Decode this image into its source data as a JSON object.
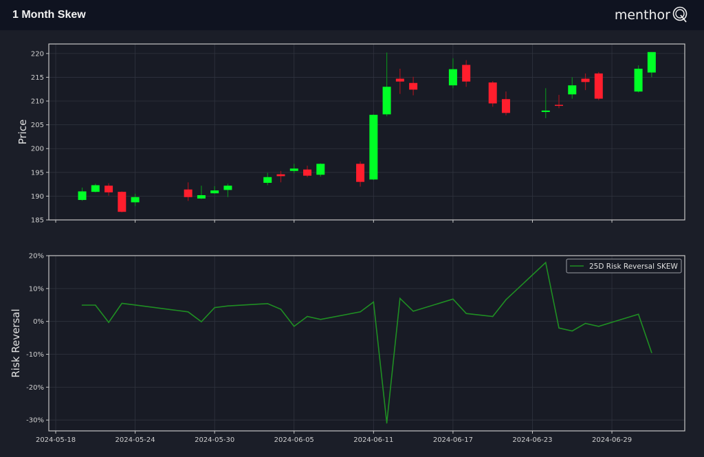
{
  "header": {
    "title": "1 Month Skew",
    "logo_text": "menthor",
    "logo_mark": "Q"
  },
  "colors": {
    "up": "#00ff26",
    "down": "#ff1e2d",
    "line": "#1f8f23",
    "grid": "#30343f",
    "spine": "#c8c8c8"
  },
  "chart_data": [
    {
      "type": "candlestick",
      "title": "",
      "xlabel": "",
      "ylabel": "Price",
      "ylim": [
        185,
        222
      ],
      "yticks": [
        185,
        190,
        195,
        200,
        205,
        210,
        215,
        220
      ],
      "xticks": [
        "2024-05-18",
        "2024-05-24",
        "2024-05-30",
        "2024-06-05",
        "2024-06-11",
        "2024-06-17",
        "2024-06-23",
        "2024-06-29"
      ],
      "grid": true,
      "candles": [
        {
          "date": "2024-05-20",
          "open": 189.2,
          "high": 191.8,
          "low": 189.0,
          "close": 191.0
        },
        {
          "date": "2024-05-21",
          "open": 190.9,
          "high": 192.6,
          "low": 190.8,
          "close": 192.3
        },
        {
          "date": "2024-05-22",
          "open": 192.2,
          "high": 192.7,
          "low": 190.1,
          "close": 190.8
        },
        {
          "date": "2024-05-23",
          "open": 190.9,
          "high": 191.0,
          "low": 186.6,
          "close": 186.7
        },
        {
          "date": "2024-05-24",
          "open": 188.7,
          "high": 190.5,
          "low": 187.9,
          "close": 189.8
        },
        {
          "date": "2024-05-28",
          "open": 191.4,
          "high": 192.9,
          "low": 189.0,
          "close": 189.8
        },
        {
          "date": "2024-05-29",
          "open": 189.5,
          "high": 192.2,
          "low": 189.4,
          "close": 190.2
        },
        {
          "date": "2024-05-30",
          "open": 190.6,
          "high": 192.1,
          "low": 190.5,
          "close": 191.2
        },
        {
          "date": "2024-05-31",
          "open": 191.3,
          "high": 192.6,
          "low": 189.8,
          "close": 192.2
        },
        {
          "date": "2024-06-03",
          "open": 192.8,
          "high": 194.9,
          "low": 192.3,
          "close": 194.0
        },
        {
          "date": "2024-06-04",
          "open": 194.6,
          "high": 195.3,
          "low": 192.9,
          "close": 194.2
        },
        {
          "date": "2024-06-05",
          "open": 195.3,
          "high": 196.8,
          "low": 194.8,
          "close": 195.8
        },
        {
          "date": "2024-06-06",
          "open": 195.6,
          "high": 196.4,
          "low": 194.0,
          "close": 194.3
        },
        {
          "date": "2024-06-07",
          "open": 194.5,
          "high": 196.9,
          "low": 194.1,
          "close": 196.8
        },
        {
          "date": "2024-06-10",
          "open": 196.8,
          "high": 197.3,
          "low": 192.0,
          "close": 193.0
        },
        {
          "date": "2024-06-11",
          "open": 193.5,
          "high": 207.2,
          "low": 193.4,
          "close": 207.1
        },
        {
          "date": "2024-06-12",
          "open": 207.2,
          "high": 220.2,
          "low": 206.8,
          "close": 213.0
        },
        {
          "date": "2024-06-13",
          "open": 214.7,
          "high": 216.8,
          "low": 211.5,
          "close": 214.1
        },
        {
          "date": "2024-06-14",
          "open": 213.8,
          "high": 215.1,
          "low": 211.2,
          "close": 212.4
        },
        {
          "date": "2024-06-17",
          "open": 213.3,
          "high": 219.0,
          "low": 212.7,
          "close": 216.7
        },
        {
          "date": "2024-06-18",
          "open": 217.6,
          "high": 218.6,
          "low": 213.0,
          "close": 214.1
        },
        {
          "date": "2024-06-20",
          "open": 213.9,
          "high": 214.2,
          "low": 208.8,
          "close": 209.5
        },
        {
          "date": "2024-06-21",
          "open": 210.4,
          "high": 212.0,
          "low": 207.0,
          "close": 207.5
        },
        {
          "date": "2024-06-24",
          "open": 207.7,
          "high": 212.7,
          "low": 206.4,
          "close": 208.0
        },
        {
          "date": "2024-06-25",
          "open": 209.2,
          "high": 211.3,
          "low": 208.5,
          "close": 209.0
        },
        {
          "date": "2024-06-26",
          "open": 211.4,
          "high": 215.0,
          "low": 210.5,
          "close": 213.3
        },
        {
          "date": "2024-06-27",
          "open": 214.7,
          "high": 215.8,
          "low": 212.3,
          "close": 214.0
        },
        {
          "date": "2024-06-28",
          "open": 215.8,
          "high": 216.1,
          "low": 210.2,
          "close": 210.5
        },
        {
          "date": "2024-07-01",
          "open": 212.0,
          "high": 217.5,
          "low": 211.8,
          "close": 216.8
        },
        {
          "date": "2024-07-02",
          "open": 216.0,
          "high": 220.3,
          "low": 215.0,
          "close": 220.3
        }
      ]
    },
    {
      "type": "line",
      "title": "",
      "xlabel": "",
      "ylabel": "Risk Reversal",
      "ylim": [
        -33.3,
        20
      ],
      "yticks": [
        20,
        10,
        0,
        -10,
        -20,
        -30
      ],
      "ytick_labels": [
        "20%",
        "10%",
        "0%",
        "-10%",
        "-20%",
        "-30%"
      ],
      "xticks": [
        "2024-05-18",
        "2024-05-24",
        "2024-05-30",
        "2024-06-05",
        "2024-06-11",
        "2024-06-17",
        "2024-06-23",
        "2024-06-29"
      ],
      "grid": true,
      "legend_position": "top-right",
      "series": [
        {
          "name": "25D Risk Reversal SKEW",
          "x": [
            "2024-05-20",
            "2024-05-21",
            "2024-05-22",
            "2024-05-23",
            "2024-05-24",
            "2024-05-28",
            "2024-05-29",
            "2024-05-30",
            "2024-05-31",
            "2024-06-03",
            "2024-06-04",
            "2024-06-05",
            "2024-06-06",
            "2024-06-07",
            "2024-06-10",
            "2024-06-11",
            "2024-06-12",
            "2024-06-13",
            "2024-06-14",
            "2024-06-17",
            "2024-06-18",
            "2024-06-20",
            "2024-06-21",
            "2024-06-24",
            "2024-06-25",
            "2024-06-26",
            "2024-06-27",
            "2024-06-28",
            "2024-07-01",
            "2024-07-02"
          ],
          "values": [
            4.95,
            4.95,
            -0.3,
            5.5,
            5.0,
            2.9,
            -0.1,
            4.2,
            4.7,
            5.4,
            3.7,
            -1.5,
            1.5,
            0.6,
            2.9,
            5.9,
            -30.9,
            7.0,
            3.1,
            6.8,
            2.4,
            1.5,
            6.6,
            17.9,
            -2.0,
            -2.9,
            -0.6,
            -1.5,
            2.2,
            -9.5
          ]
        }
      ]
    }
  ]
}
